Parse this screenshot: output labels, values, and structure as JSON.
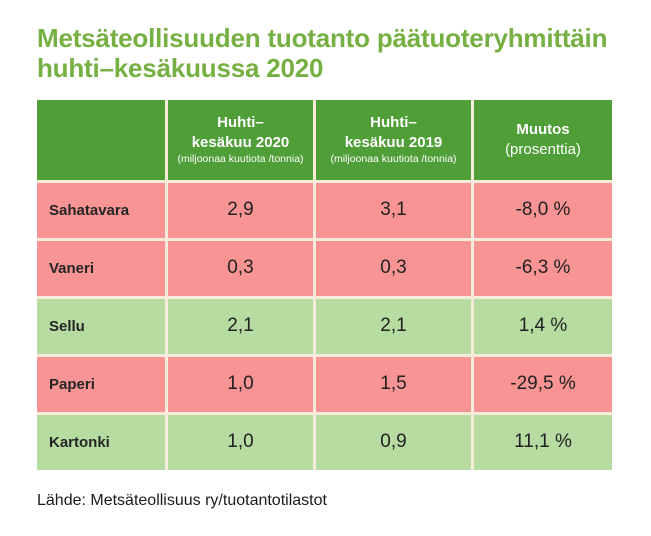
{
  "page": {
    "title_line1": "Metsäteollisuuden tuotanto päätuoteryhmittäin",
    "title_line2": "huhti–kesäkuussa 2020",
    "source": "Lähde: Metsäteollisuus ry/tuotantotilastot"
  },
  "table": {
    "headers": {
      "blank": "",
      "col2": {
        "line1": "Huhti–",
        "line2": "kesäkuu 2020",
        "unit": "(miljoonaa kuutiota /tonnia)"
      },
      "col3": {
        "line1": "Huhti–",
        "line2": "kesäkuu 2019",
        "unit": "(miljoonaa kuutiota /tonnia)"
      },
      "col4": {
        "line1": "Muutos",
        "line2": "(prosenttia)"
      }
    },
    "rows": [
      {
        "label": "Sahatavara",
        "v2020": "2,9",
        "v2019": "3,1",
        "change": "-8,0 %",
        "tone": "negative"
      },
      {
        "label": "Vaneri",
        "v2020": "0,3",
        "v2019": "0,3",
        "change": "-6,3 %",
        "tone": "negative"
      },
      {
        "label": "Sellu",
        "v2020": "2,1",
        "v2019": "2,1",
        "change": "1,4 %",
        "tone": "positive"
      },
      {
        "label": "Paperi",
        "v2020": "1,0",
        "v2019": "1,5",
        "change": "-29,5 %",
        "tone": "negative"
      },
      {
        "label": "Kartonki",
        "v2020": "1,0",
        "v2019": "0,9",
        "change": "11,1 %",
        "tone": "positive"
      }
    ]
  },
  "colors": {
    "title_green": "#76b043",
    "header_green": "#4f9e38",
    "row_negative_pink": "#f89494",
    "row_positive_green": "#b6dca2",
    "separator_cream": "#f6ecd9",
    "text_dark": "#262626"
  },
  "chart_data": {
    "type": "table",
    "title": "Metsäteollisuuden tuotanto päätuoteryhmittäin huhti–kesäkuussa 2020",
    "columns": [
      "",
      "Huhti–kesäkuu 2020 (miljoonaa kuutiota /tonnia)",
      "Huhti–kesäkuu 2019 (miljoonaa kuutiota /tonnia)",
      "Muutos (prosenttia)"
    ],
    "rows": [
      [
        "Sahatavara",
        2.9,
        3.1,
        "-8,0 %"
      ],
      [
        "Vaneri",
        0.3,
        0.3,
        "-6,3 %"
      ],
      [
        "Sellu",
        2.1,
        2.1,
        "1,4 %"
      ],
      [
        "Paperi",
        1.0,
        1.5,
        "-29,5 %"
      ],
      [
        "Kartonki",
        1.0,
        0.9,
        "11,1 %"
      ]
    ],
    "row_tone": [
      "negative",
      "negative",
      "positive",
      "negative",
      "positive"
    ],
    "source": "Lähde: Metsäteollisuus ry/tuotantotilastot",
    "layout": "header row dark green with white text; rows with decrease shaded pink, rows with increase shaded light green"
  }
}
